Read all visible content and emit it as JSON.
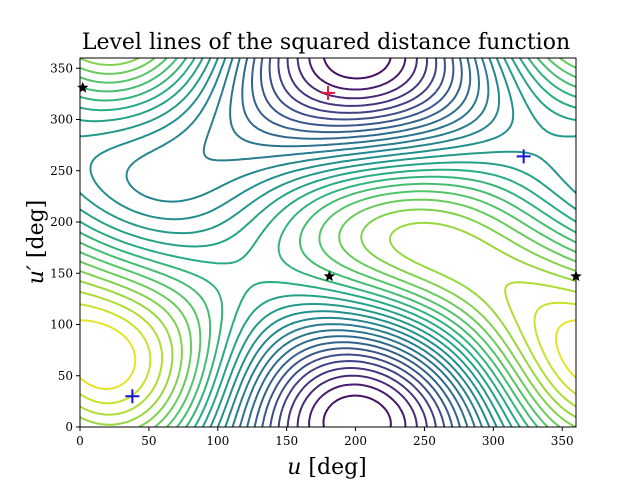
{
  "chart_data": {
    "type": "contour",
    "title": "Level lines of the squared distance function",
    "xlabel_var": "u",
    "xlabel_unit": " [deg]",
    "ylabel_var": "u′",
    "ylabel_unit": " [deg]",
    "xlim": [
      0,
      360
    ],
    "ylim": [
      0,
      360
    ],
    "xticks": [
      0,
      50,
      100,
      150,
      200,
      250,
      300,
      350
    ],
    "yticks": [
      0,
      50,
      100,
      150,
      200,
      250,
      300,
      350
    ],
    "grid": false,
    "colormap": "viridis",
    "markers": [
      {
        "kind": "max",
        "symbol": "+",
        "color": "#e8193c",
        "x": 180,
        "y": 326
      },
      {
        "kind": "min",
        "symbol": "+",
        "color": "#1414d8",
        "x": 38,
        "y": 30
      },
      {
        "kind": "min",
        "symbol": "+",
        "color": "#1414d8",
        "x": 322,
        "y": 264
      },
      {
        "kind": "saddle",
        "symbol": "star",
        "color": "#000000",
        "x": 2,
        "y": 331
      },
      {
        "kind": "saddle",
        "symbol": "star",
        "color": "#000000",
        "x": 181,
        "y": 147
      },
      {
        "kind": "saddle",
        "symbol": "star",
        "color": "#000000",
        "x": 360,
        "y": 147
      }
    ]
  }
}
